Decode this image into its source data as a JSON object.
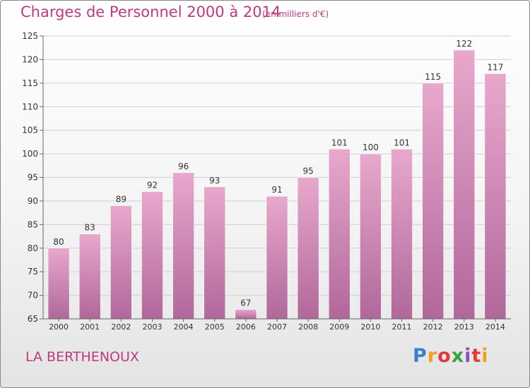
{
  "header": {
    "title": "Charges de Personnel 2000 à 2014",
    "subtitle": "(en milliers d'€)"
  },
  "footer": {
    "commune": "LA BERTHENOUX",
    "logo_text": "Proxiti"
  },
  "colors": {
    "bar_top": "#e8a8cc",
    "bar_bottom": "#b0689a",
    "accent": "#c0397f"
  },
  "chart_data": {
    "type": "bar",
    "title": "Charges de Personnel 2000 à 2014",
    "subtitle": "(en milliers d'€)",
    "xlabel": "",
    "ylabel": "",
    "categories": [
      "2000",
      "2001",
      "2002",
      "2003",
      "2004",
      "2005",
      "2006",
      "2007",
      "2008",
      "2009",
      "2010",
      "2011",
      "2012",
      "2013",
      "2014"
    ],
    "values": [
      80,
      83,
      89,
      92,
      96,
      93,
      67,
      91,
      95,
      101,
      100,
      101,
      115,
      122,
      117
    ],
    "ylim": [
      65,
      125
    ],
    "yticks": [
      65,
      70,
      75,
      80,
      85,
      90,
      95,
      100,
      105,
      110,
      115,
      120,
      125
    ],
    "grid": true,
    "legend": "none"
  }
}
